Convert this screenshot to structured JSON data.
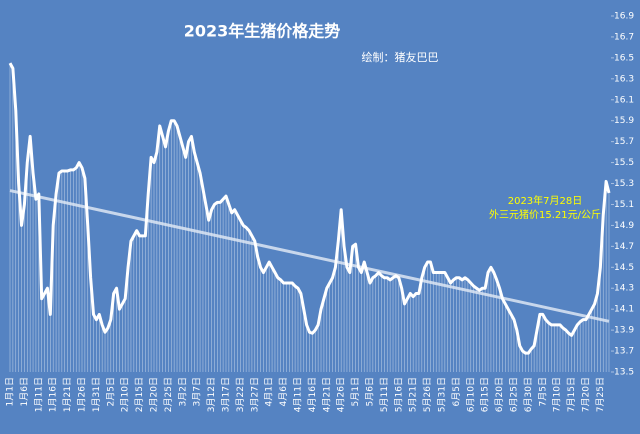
{
  "chart_data": {
    "type": "line",
    "title": "2023年生猪价格走势",
    "subtitle": "绘制：猪友巴巴",
    "annotations": [
      "2023年7月28日",
      "外三元猪价15.21元/公斤"
    ],
    "color": "#ffffff",
    "annotation_color": "#ffff00",
    "drop_lines": true,
    "trendline": true,
    "ylim": [
      13.5,
      16.9
    ],
    "yticks": [
      13.5,
      13.7,
      13.9,
      14.1,
      14.3,
      14.5,
      14.7,
      14.9,
      15.1,
      15.3,
      15.5,
      15.7,
      15.9,
      16.1,
      16.3,
      16.5,
      16.7,
      16.9
    ],
    "categories": [
      "1月1日",
      null,
      null,
      null,
      null,
      "1月6日",
      null,
      null,
      null,
      null,
      "1月11日",
      null,
      null,
      null,
      null,
      "1月16日",
      null,
      null,
      null,
      null,
      "1月21日",
      null,
      null,
      null,
      null,
      "1月26日",
      null,
      null,
      null,
      null,
      "1月31日",
      null,
      null,
      null,
      null,
      "2月5日",
      null,
      null,
      null,
      null,
      "2月10日",
      null,
      null,
      null,
      null,
      "2月15日",
      null,
      null,
      null,
      null,
      "2月20日",
      null,
      null,
      null,
      null,
      "2月25日",
      null,
      null,
      null,
      null,
      "3月2日",
      null,
      null,
      null,
      null,
      "3月7日",
      null,
      null,
      null,
      null,
      "3月12日",
      null,
      null,
      null,
      null,
      "3月17日",
      null,
      null,
      null,
      null,
      "3月22日",
      null,
      null,
      null,
      null,
      "3月27日",
      null,
      null,
      null,
      null,
      "4月1日",
      null,
      null,
      null,
      null,
      "4月6日",
      null,
      null,
      null,
      null,
      "4月11日",
      null,
      null,
      null,
      null,
      "4月16日",
      null,
      null,
      null,
      null,
      "4月21日",
      null,
      null,
      null,
      null,
      "4月26日",
      null,
      null,
      null,
      null,
      "5月1日",
      null,
      null,
      null,
      null,
      "5月6日",
      null,
      null,
      null,
      null,
      "5月11日",
      null,
      null,
      null,
      null,
      "5月16日",
      null,
      null,
      null,
      null,
      "5月21日",
      null,
      null,
      null,
      null,
      "5月26日",
      null,
      null,
      null,
      null,
      "5月31日",
      null,
      null,
      null,
      null,
      "6月5日",
      null,
      null,
      null,
      null,
      "6月10日",
      null,
      null,
      null,
      null,
      "6月15日",
      null,
      null,
      null,
      null,
      "6月20日",
      null,
      null,
      null,
      null,
      "6月25日",
      null,
      null,
      null,
      null,
      "6月30日",
      null,
      null,
      null,
      null,
      "7月5日",
      null,
      null,
      null,
      null,
      "7月10日",
      null,
      null,
      null,
      null,
      "7月15日",
      null,
      null,
      null,
      null,
      "7月20日",
      null,
      null,
      null,
      null,
      "7月25日",
      null,
      null,
      null
    ],
    "values": [
      16.45,
      16.4,
      16.0,
      15.3,
      14.9,
      15.1,
      15.5,
      15.75,
      15.4,
      15.15,
      15.2,
      14.2,
      14.25,
      14.3,
      14.05,
      14.9,
      15.2,
      15.4,
      15.42,
      15.42,
      15.42,
      15.43,
      15.43,
      15.45,
      15.5,
      15.45,
      15.35,
      14.9,
      14.4,
      14.05,
      14.0,
      14.05,
      13.95,
      13.88,
      13.92,
      14.0,
      14.25,
      14.3,
      14.1,
      14.15,
      14.2,
      14.5,
      14.75,
      14.8,
      14.85,
      14.8,
      14.8,
      14.8,
      15.2,
      15.55,
      15.5,
      15.6,
      15.85,
      15.75,
      15.65,
      15.8,
      15.9,
      15.9,
      15.85,
      15.75,
      15.65,
      15.55,
      15.7,
      15.75,
      15.6,
      15.5,
      15.4,
      15.25,
      15.1,
      14.95,
      15.05,
      15.1,
      15.12,
      15.12,
      15.15,
      15.18,
      15.1,
      15.02,
      15.05,
      15.0,
      14.95,
      14.9,
      14.88,
      14.85,
      14.8,
      14.75,
      14.6,
      14.5,
      14.45,
      14.5,
      14.55,
      14.5,
      14.45,
      14.4,
      14.38,
      14.35,
      14.35,
      14.35,
      14.35,
      14.32,
      14.3,
      14.25,
      14.1,
      13.95,
      13.88,
      13.87,
      13.9,
      13.95,
      14.1,
      14.2,
      14.3,
      14.35,
      14.4,
      14.5,
      14.75,
      15.05,
      14.7,
      14.5,
      14.45,
      14.7,
      14.72,
      14.5,
      14.45,
      14.55,
      14.45,
      14.35,
      14.4,
      14.42,
      14.45,
      14.42,
      14.4,
      14.4,
      14.38,
      14.4,
      14.42,
      14.4,
      14.3,
      14.15,
      14.2,
      14.25,
      14.22,
      14.25,
      14.25,
      14.4,
      14.5,
      14.55,
      14.55,
      14.45,
      14.45,
      14.45,
      14.45,
      14.45,
      14.4,
      14.35,
      14.38,
      14.4,
      14.4,
      14.38,
      14.4,
      14.38,
      14.35,
      14.32,
      14.3,
      14.28,
      14.3,
      14.3,
      14.45,
      14.5,
      14.45,
      14.38,
      14.3,
      14.2,
      14.15,
      14.1,
      14.05,
      14.0,
      13.9,
      13.75,
      13.7,
      13.68,
      13.68,
      13.72,
      13.75,
      13.9,
      14.05,
      14.05,
      14.0,
      13.97,
      13.95,
      13.95,
      13.95,
      13.95,
      13.92,
      13.9,
      13.87,
      13.85,
      13.9,
      13.95,
      13.98,
      14.0,
      14.0,
      14.05,
      14.1,
      14.15,
      14.25,
      14.5,
      15.0,
      15.32,
      15.21
    ]
  }
}
